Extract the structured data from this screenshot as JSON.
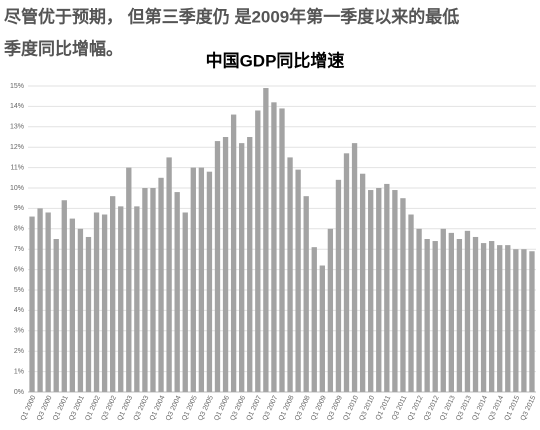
{
  "caption": [
    "尽管优于预期， 但第三季度仍 是2009年第一季度以来的最低",
    "季度同比增幅。"
  ],
  "chart_data": {
    "type": "bar",
    "title": "中国GDP同比增速",
    "categories": [
      "Q1 2000",
      null,
      "Q3 2000",
      null,
      "Q1 2001",
      null,
      "Q3 2001",
      null,
      "Q1 2002",
      null,
      "Q3 2002",
      null,
      "Q1 2003",
      null,
      "Q3 2003",
      null,
      "Q1 2004",
      null,
      "Q3 2004",
      null,
      "Q1 2005",
      null,
      "Q3 2005",
      null,
      "Q1 2006",
      null,
      "Q3 2006",
      null,
      "Q1 2007",
      null,
      "Q3 2007",
      null,
      "Q1 2008",
      null,
      "Q3 2008",
      null,
      "Q1 2009",
      null,
      "Q3 2009",
      null,
      "Q1 2010",
      null,
      "Q3 2010",
      null,
      "Q1 2011",
      null,
      "Q3 2011",
      null,
      "Q1 2012",
      null,
      "Q3 2012",
      null,
      "Q1 2013",
      null,
      "Q3 2013",
      null,
      "Q1 2014",
      null,
      "Q3 2014",
      null,
      "Q1 2015",
      null,
      "Q3 2015"
    ],
    "values": [
      8.6,
      9.0,
      8.8,
      7.5,
      9.4,
      8.5,
      8.0,
      7.6,
      8.8,
      8.7,
      9.6,
      9.1,
      11.0,
      9.1,
      10.0,
      10.0,
      10.5,
      11.5,
      9.8,
      8.8,
      11.0,
      11.0,
      10.8,
      12.3,
      12.5,
      13.6,
      12.2,
      12.5,
      13.8,
      14.9,
      14.2,
      13.9,
      11.5,
      10.9,
      9.6,
      7.1,
      6.2,
      8.0,
      10.4,
      11.7,
      12.2,
      10.7,
      9.9,
      10.0,
      10.2,
      9.9,
      9.5,
      8.7,
      8.0,
      7.5,
      7.4,
      8.0,
      7.8,
      7.5,
      7.9,
      7.6,
      7.3,
      7.4,
      7.2,
      7.2,
      7.0,
      7.0,
      6.9
    ],
    "color": "#a3a3a3",
    "ylim": [
      0,
      15
    ],
    "yticks": [
      {
        "value": 0,
        "label": "0%"
      },
      {
        "value": 1,
        "label": "1%"
      },
      {
        "value": 2,
        "label": "2%"
      },
      {
        "value": 3,
        "label": "3%"
      },
      {
        "value": 4,
        "label": "4%"
      },
      {
        "value": 5,
        "label": "5%"
      },
      {
        "value": 6,
        "label": "6%"
      },
      {
        "value": 7,
        "label": "7%"
      },
      {
        "value": 8,
        "label": "8%"
      },
      {
        "value": 9,
        "label": "9%"
      },
      {
        "value": 10,
        "label": "10%"
      },
      {
        "value": 11,
        "label": "11%"
      },
      {
        "value": 12,
        "label": "12%"
      },
      {
        "value": 13,
        "label": "13%"
      },
      {
        "value": 14,
        "label": "14%"
      },
      {
        "value": 15,
        "label": "15%"
      }
    ],
    "grid": true
  }
}
